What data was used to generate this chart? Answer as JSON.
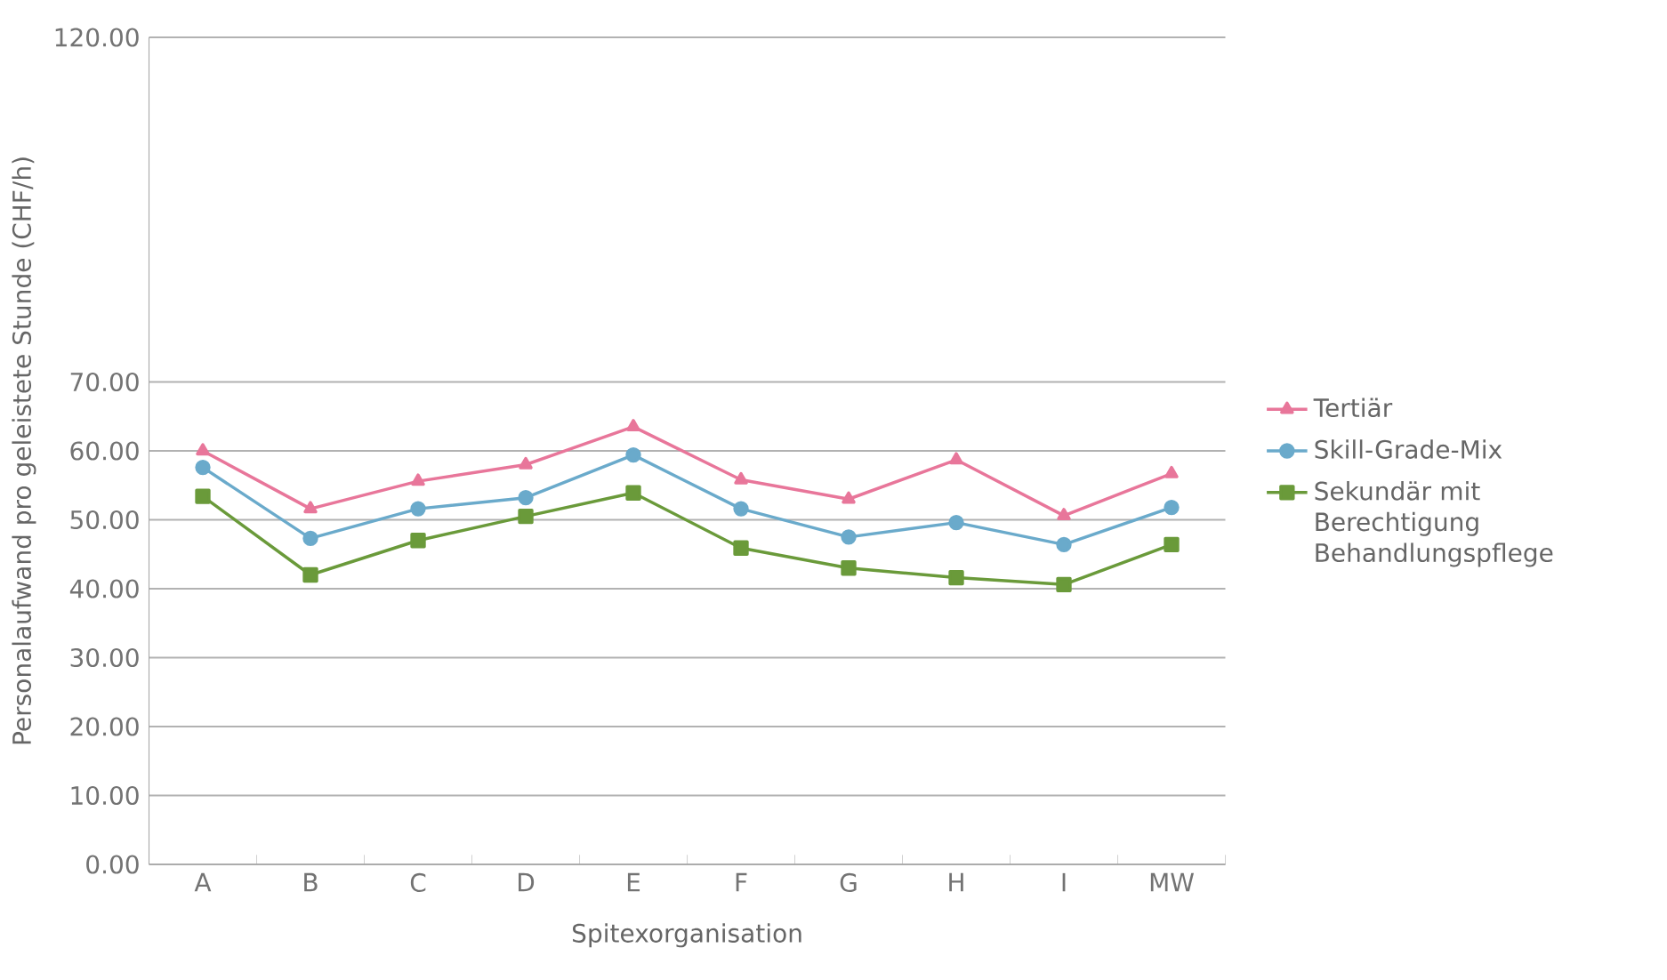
{
  "chart_data": {
    "type": "line",
    "xlabel": "Spitexorganisation",
    "ylabel": "Personalaufwand pro geleistete Stunde (CHF/h)",
    "categories": [
      "A",
      "B",
      "C",
      "D",
      "E",
      "F",
      "G",
      "H",
      "I",
      "MW"
    ],
    "series": [
      {
        "name": "Tertiär",
        "color": "#e8769a",
        "marker": "triangle",
        "values": [
          60.0,
          51.6,
          55.6,
          58.0,
          63.5,
          55.8,
          53.0,
          58.7,
          50.6,
          56.7
        ]
      },
      {
        "name": "Skill-Grade-Mix",
        "color": "#6aaacb",
        "marker": "circle",
        "values": [
          57.6,
          47.3,
          51.6,
          53.2,
          59.4,
          51.6,
          47.5,
          49.6,
          46.4,
          51.8
        ]
      },
      {
        "name": "Sekundär mit Berechtigung Behandlungspflege",
        "color": "#6a9a3a",
        "marker": "square",
        "values": [
          53.4,
          42.0,
          47.0,
          50.5,
          53.9,
          45.9,
          43.0,
          41.6,
          40.6,
          46.4
        ]
      }
    ],
    "ylim": [
      0,
      120
    ],
    "yticks": [
      {
        "value": 0,
        "label": "0.00"
      },
      {
        "value": 10,
        "label": "10.00"
      },
      {
        "value": 20,
        "label": "20.00"
      },
      {
        "value": 30,
        "label": "30.00"
      },
      {
        "value": 40,
        "label": "40.00"
      },
      {
        "value": 50,
        "label": "50.00"
      },
      {
        "value": 60,
        "label": "60.00"
      },
      {
        "value": 70,
        "label": "70.00"
      },
      {
        "value": 120,
        "label": "120.00"
      }
    ],
    "grid": "y",
    "legend": "right",
    "line_style": "solid"
  }
}
